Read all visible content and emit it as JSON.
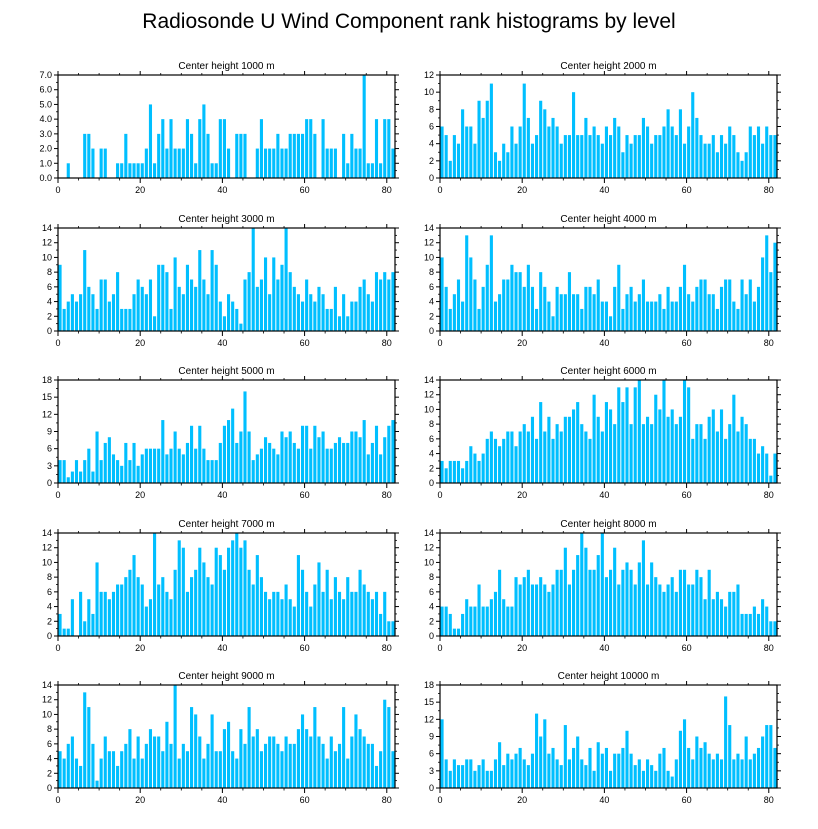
{
  "title": "Radiosonde U Wind Component rank histograms by level",
  "bar_color": "#00bfff",
  "chart_data": [
    {
      "type": "bar",
      "title": "Center height 1000 m",
      "x_start": 0,
      "xlim": [
        0,
        82
      ],
      "xticks": [
        0,
        20,
        40,
        60,
        80
      ],
      "ylim": [
        0,
        7
      ],
      "yticks": [
        0,
        1,
        2,
        3,
        4,
        5,
        6,
        7
      ],
      "ytick_labels": [
        "0.0",
        "1.0",
        "2.0",
        "3.0",
        "4.0",
        "5.0",
        "6.0",
        "7.0"
      ],
      "values": [
        0,
        0,
        1,
        0,
        0,
        0,
        3,
        3,
        2,
        0,
        2,
        2,
        0,
        0,
        1,
        1,
        3,
        1,
        1,
        1,
        1,
        2,
        5,
        1,
        3,
        4,
        2,
        4,
        2,
        2,
        2,
        4,
        3,
        1,
        4,
        5,
        3,
        1,
        1,
        4,
        4,
        2,
        0,
        3,
        3,
        3,
        0,
        0,
        2,
        4,
        2,
        2,
        2,
        3,
        2,
        2,
        3,
        3,
        3,
        3,
        4,
        4,
        3,
        0,
        4,
        2,
        2,
        2,
        0,
        3,
        1,
        3,
        2,
        2,
        7,
        1,
        1,
        4,
        1,
        4,
        4,
        2
      ]
    },
    {
      "type": "bar",
      "title": "Center height 2000 m",
      "x_start": 0,
      "xlim": [
        0,
        82
      ],
      "xticks": [
        0,
        20,
        40,
        60,
        80
      ],
      "ylim": [
        0,
        12
      ],
      "yticks": [
        0,
        2,
        4,
        6,
        8,
        10,
        12
      ],
      "values": [
        6,
        5,
        2,
        5,
        4,
        8,
        6,
        6,
        4,
        9,
        7,
        9,
        11,
        3,
        2,
        4,
        3,
        6,
        4,
        6,
        11,
        7,
        4,
        5,
        9,
        8,
        6,
        7,
        6,
        4,
        5,
        5,
        10,
        5,
        5,
        7,
        5,
        6,
        5,
        4,
        6,
        5,
        7,
        6,
        3,
        5,
        4,
        5,
        5,
        7,
        6,
        4,
        5,
        5,
        6,
        8,
        6,
        5,
        8,
        4,
        6,
        10,
        7,
        5,
        4,
        4,
        5,
        3,
        5,
        4,
        6,
        5,
        3,
        2,
        3,
        6,
        5,
        6,
        4,
        6,
        5,
        5
      ]
    },
    {
      "type": "bar",
      "title": "Center height 3000 m",
      "x_start": 0,
      "xlim": [
        0,
        82
      ],
      "xticks": [
        0,
        20,
        40,
        60,
        80
      ],
      "ylim": [
        0,
        14
      ],
      "yticks": [
        0,
        2,
        4,
        6,
        8,
        10,
        12,
        14
      ],
      "values": [
        9,
        3,
        4,
        5,
        4,
        5,
        11,
        6,
        5,
        3,
        7,
        7,
        4,
        5,
        8,
        3,
        3,
        3,
        5,
        7,
        6,
        5,
        7,
        2,
        9,
        9,
        8,
        3,
        10,
        6,
        5,
        9,
        7,
        6,
        11,
        7,
        5,
        11,
        9,
        4,
        2,
        5,
        4,
        3,
        1,
        7,
        8,
        14,
        6,
        7,
        10,
        5,
        10,
        7,
        9,
        14,
        8,
        6,
        5,
        4,
        7,
        5,
        4,
        6,
        5,
        3,
        3,
        6,
        2,
        5,
        2,
        4,
        4,
        6,
        7,
        5,
        4,
        8,
        7,
        8,
        7,
        8
      ]
    },
    {
      "type": "bar",
      "title": "Center height 4000 m",
      "x_start": 0,
      "xlim": [
        0,
        82
      ],
      "xticks": [
        0,
        20,
        40,
        60,
        80
      ],
      "ylim": [
        0,
        14
      ],
      "yticks": [
        0,
        2,
        4,
        6,
        8,
        10,
        12,
        14
      ],
      "values": [
        10,
        6,
        3,
        5,
        7,
        4,
        13,
        10,
        7,
        3,
        6,
        9,
        13,
        4,
        5,
        7,
        7,
        9,
        8,
        8,
        6,
        9,
        6,
        3,
        8,
        6,
        4,
        2,
        6,
        5,
        5,
        8,
        5,
        5,
        3,
        6,
        6,
        5,
        7,
        4,
        4,
        2,
        6,
        9,
        3,
        5,
        6,
        4,
        5,
        7,
        4,
        4,
        4,
        5,
        3,
        6,
        4,
        4,
        6,
        9,
        5,
        4,
        6,
        7,
        7,
        5,
        5,
        3,
        6,
        7,
        7,
        4,
        3,
        7,
        5,
        7,
        4,
        6,
        10,
        13,
        8,
        12
      ]
    },
    {
      "type": "bar",
      "title": "Center height 5000 m",
      "x_start": 0,
      "xlim": [
        0,
        82
      ],
      "xticks": [
        0,
        20,
        40,
        60,
        80
      ],
      "ylim": [
        0,
        18
      ],
      "yticks": [
        0,
        3,
        6,
        9,
        12,
        15,
        18
      ],
      "values": [
        4,
        4,
        1,
        2,
        4,
        2,
        4,
        6,
        2,
        9,
        4,
        7,
        8,
        5,
        4,
        3,
        7,
        4,
        7,
        3,
        5,
        6,
        6,
        6,
        6,
        11,
        5,
        6,
        9,
        6,
        5,
        7,
        10,
        6,
        10,
        6,
        4,
        4,
        4,
        7,
        10,
        11,
        13,
        7,
        9,
        16,
        9,
        4,
        5,
        6,
        8,
        7,
        6,
        5,
        9,
        8,
        9,
        7,
        6,
        10,
        10,
        6,
        10,
        8,
        9,
        6,
        6,
        7,
        8,
        7,
        7,
        9,
        9,
        8,
        11,
        5,
        7,
        10,
        5,
        8,
        10,
        11
      ]
    },
    {
      "type": "bar",
      "title": "Center height 6000 m",
      "x_start": 0,
      "xlim": [
        0,
        82
      ],
      "xticks": [
        0,
        20,
        40,
        60,
        80
      ],
      "ylim": [
        0,
        14
      ],
      "yticks": [
        0,
        2,
        4,
        6,
        8,
        10,
        12,
        14
      ],
      "values": [
        3,
        2,
        3,
        3,
        3,
        2,
        3,
        5,
        4,
        3,
        4,
        6,
        7,
        6,
        5,
        6,
        7,
        7,
        5,
        7,
        8,
        7,
        9,
        6,
        11,
        7,
        9,
        6,
        8,
        7,
        9,
        9,
        10,
        11,
        8,
        7,
        6,
        12,
        9,
        7,
        11,
        10,
        8,
        13,
        11,
        13,
        8,
        13,
        14,
        8,
        9,
        8,
        12,
        10,
        14,
        9,
        10,
        8,
        9,
        14,
        13,
        6,
        8,
        8,
        6,
        9,
        10,
        7,
        10,
        6,
        8,
        12,
        7,
        9,
        8,
        6,
        6,
        4,
        5,
        4,
        1,
        4
      ]
    },
    {
      "type": "bar",
      "title": "Center height 7000 m",
      "x_start": 0,
      "xlim": [
        0,
        82
      ],
      "xticks": [
        0,
        20,
        40,
        60,
        80
      ],
      "ylim": [
        0,
        14
      ],
      "yticks": [
        0,
        2,
        4,
        6,
        8,
        10,
        12,
        14
      ],
      "values": [
        3,
        1,
        1,
        5,
        0,
        6,
        2,
        5,
        3,
        10,
        6,
        6,
        5,
        6,
        7,
        7,
        8,
        9,
        11,
        8,
        7,
        4,
        5,
        14,
        7,
        8,
        6,
        5,
        9,
        13,
        12,
        6,
        8,
        9,
        12,
        10,
        8,
        7,
        12,
        11,
        9,
        12,
        13,
        14,
        12,
        13,
        9,
        7,
        11,
        8,
        6,
        5,
        6,
        6,
        5,
        7,
        5,
        4,
        11,
        9,
        6,
        4,
        7,
        10,
        6,
        9,
        5,
        8,
        6,
        5,
        8,
        6,
        6,
        9,
        7,
        6,
        5,
        6,
        3,
        6,
        2,
        2
      ]
    },
    {
      "type": "bar",
      "title": "Center height 8000 m",
      "x_start": 0,
      "xlim": [
        0,
        82
      ],
      "xticks": [
        0,
        20,
        40,
        60,
        80
      ],
      "ylim": [
        0,
        14
      ],
      "yticks": [
        0,
        2,
        4,
        6,
        8,
        10,
        12,
        14
      ],
      "values": [
        4,
        4,
        3,
        1,
        1,
        3,
        5,
        4,
        4,
        7,
        4,
        4,
        5,
        6,
        9,
        5,
        4,
        4,
        8,
        7,
        8,
        9,
        7,
        7,
        8,
        7,
        6,
        7,
        9,
        9,
        12,
        7,
        9,
        11,
        14,
        12,
        9,
        9,
        11,
        14,
        8,
        9,
        12,
        7,
        9,
        10,
        9,
        7,
        10,
        13,
        7,
        10,
        8,
        7,
        6,
        7,
        8,
        6,
        9,
        9,
        7,
        7,
        9,
        8,
        5,
        9,
        5,
        6,
        5,
        4,
        6,
        6,
        7,
        3,
        3,
        3,
        4,
        3,
        5,
        4,
        2,
        2
      ]
    },
    {
      "type": "bar",
      "title": "Center height 9000 m",
      "x_start": 0,
      "xlim": [
        0,
        82
      ],
      "xticks": [
        0,
        20,
        40,
        60,
        80
      ],
      "ylim": [
        0,
        14
      ],
      "yticks": [
        0,
        2,
        4,
        6,
        8,
        10,
        12,
        14
      ],
      "values": [
        5,
        4,
        6,
        7,
        4,
        3,
        13,
        11,
        6,
        1,
        4,
        7,
        5,
        5,
        3,
        5,
        6,
        8,
        4,
        7,
        4,
        6,
        8,
        7,
        7,
        5,
        9,
        6,
        14,
        4,
        6,
        5,
        11,
        10,
        7,
        4,
        6,
        10,
        5,
        5,
        8,
        9,
        5,
        4,
        8,
        6,
        11,
        7,
        8,
        5,
        6,
        7,
        7,
        6,
        5,
        7,
        6,
        6,
        8,
        10,
        8,
        7,
        11,
        7,
        6,
        4,
        7,
        5,
        6,
        11,
        4,
        7,
        10,
        8,
        7,
        6,
        6,
        3,
        5,
        12,
        11,
        5
      ]
    },
    {
      "type": "bar",
      "title": "Center height 10000 m",
      "x_start": 0,
      "xlim": [
        0,
        82
      ],
      "xticks": [
        0,
        20,
        40,
        60,
        80
      ],
      "ylim": [
        0,
        18
      ],
      "yticks": [
        0,
        3,
        6,
        9,
        12,
        15,
        18
      ],
      "values": [
        12,
        5,
        3,
        5,
        4,
        4,
        5,
        5,
        3,
        4,
        5,
        3,
        3,
        5,
        8,
        4,
        6,
        5,
        6,
        7,
        5,
        4,
        6,
        13,
        9,
        12,
        6,
        7,
        5,
        4,
        11,
        5,
        7,
        9,
        5,
        4,
        7,
        3,
        8,
        6,
        7,
        3,
        6,
        6,
        7,
        10,
        6,
        4,
        5,
        3,
        5,
        4,
        3,
        6,
        7,
        3,
        2,
        5,
        10,
        12,
        7,
        5,
        9,
        7,
        8,
        6,
        5,
        6,
        5,
        16,
        11,
        5,
        6,
        5,
        9,
        5,
        6,
        7,
        9,
        11,
        11,
        7
      ]
    }
  ]
}
